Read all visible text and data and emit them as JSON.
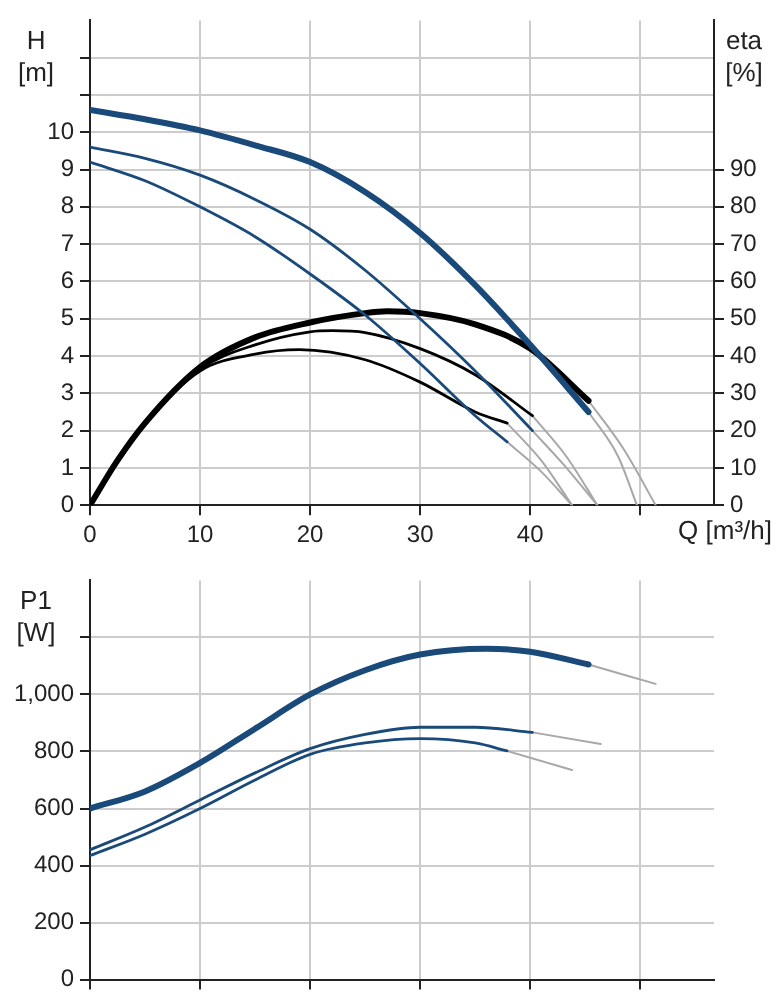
{
  "chart_data": [
    {
      "type": "line",
      "ylabel": "H [m]",
      "y2label": "eta [%]",
      "xlabel": "Q [m³/h]",
      "xlim": [
        0,
        56.7
      ],
      "xticks": [
        0,
        10,
        20,
        30,
        40,
        {
          "value": 50,
          "label": null
        }
      ],
      "ylim": [
        0,
        13
      ],
      "yticks": [
        0,
        1,
        2,
        3,
        4,
        5,
        6,
        7,
        8,
        9,
        10,
        {
          "value": 11,
          "label": null
        },
        {
          "value": 12,
          "label": null
        }
      ],
      "y2lim": [
        0,
        130
      ],
      "y2ticks": [
        0,
        10,
        20,
        30,
        40,
        50,
        60,
        70,
        80,
        90
      ],
      "grid": true,
      "legend": false,
      "marker": "none",
      "line_style": "solid",
      "series": [
        {
          "color": "#1a4a7a",
          "x": [
            0,
            5,
            10,
            15,
            20,
            25,
            30,
            35,
            40,
            45.3
          ],
          "values": [
            10.6,
            10.35,
            10.05,
            9.65,
            9.2,
            8.4,
            7.3,
            5.9,
            4.3,
            2.5
          ]
        },
        {
          "color": "#1a4a7a",
          "x": [
            0,
            5,
            10,
            15,
            20,
            25,
            30,
            35,
            40.2
          ],
          "values": [
            9.6,
            9.3,
            8.85,
            8.2,
            7.4,
            6.3,
            5.0,
            3.6,
            2.0
          ]
        },
        {
          "color": "#1a4a7a",
          "x": [
            0,
            5,
            10,
            15,
            20,
            25,
            30,
            35,
            37.9
          ],
          "values": [
            9.2,
            8.7,
            8.0,
            7.2,
            6.2,
            5.1,
            3.8,
            2.4,
            1.7
          ]
        },
        {
          "color": "#000000",
          "axis": "y2",
          "x": [
            0,
            2.5,
            5,
            10,
            15,
            20,
            25,
            27,
            30,
            35,
            40,
            45.3
          ],
          "values": [
            0,
            12,
            22,
            37,
            45,
            49,
            51.5,
            52,
            51.5,
            48.5,
            42,
            28
          ]
        },
        {
          "color": "#000000",
          "axis": "y2",
          "x": [
            0,
            2.5,
            5,
            10,
            15,
            20,
            22,
            25,
            30,
            35,
            40.2
          ],
          "values": [
            0,
            12,
            22,
            36.5,
            43,
            46.5,
            46.8,
            46.3,
            42,
            35,
            24
          ]
        },
        {
          "color": "#000000",
          "axis": "y2",
          "x": [
            0,
            2.5,
            5,
            10,
            15,
            19,
            25,
            30,
            35,
            37.9
          ],
          "values": [
            0,
            12,
            22,
            36,
            40.5,
            41.7,
            39,
            33,
            25,
            22
          ]
        },
        {
          "color": "#a8a8a8",
          "x": [
            45.3,
            48,
            49.7
          ],
          "values": [
            2.5,
            1.3,
            0
          ]
        },
        {
          "color": "#a8a8a8",
          "x": [
            40.2,
            43,
            46.1
          ],
          "values": [
            2.0,
            1.1,
            0
          ]
        },
        {
          "color": "#a8a8a8",
          "x": [
            37.9,
            41,
            43.8
          ],
          "values": [
            1.7,
            0.9,
            0
          ]
        },
        {
          "color": "#a8a8a8",
          "axis": "y2",
          "x": [
            45.3,
            48.5,
            51.4
          ],
          "values": [
            28,
            15,
            0
          ]
        },
        {
          "color": "#a8a8a8",
          "axis": "y2",
          "x": [
            40.2,
            43.3,
            46.1
          ],
          "values": [
            24,
            13,
            0
          ]
        },
        {
          "color": "#a8a8a8",
          "axis": "y2",
          "x": [
            37.9,
            41,
            43.8
          ],
          "values": [
            22,
            12,
            0
          ]
        }
      ]
    },
    {
      "type": "line",
      "ylabel": "P1 [W]",
      "xlim": [
        0,
        56.7
      ],
      "xticks": [
        0,
        10,
        20,
        30,
        40,
        50
      ],
      "ylim": [
        0,
        1400
      ],
      "yticks": [
        0,
        200,
        400,
        600,
        800,
        {
          "value": 1000,
          "label": "1,000"
        },
        {
          "value": 1200,
          "label": null
        }
      ],
      "tick_labels": "y",
      "grid": true,
      "legend": false,
      "marker": "none",
      "line_style": "solid",
      "series": [
        {
          "color": "#1a4a7a",
          "x": [
            0,
            5,
            10,
            15,
            20,
            25,
            30,
            36,
            40,
            45.3
          ],
          "values": [
            600,
            660,
            760,
            880,
            1000,
            1085,
            1140,
            1160,
            1150,
            1105
          ]
        },
        {
          "color": "#1a4a7a",
          "x": [
            0,
            5,
            10,
            15,
            20,
            25,
            30,
            35,
            40.2
          ],
          "values": [
            455,
            535,
            630,
            725,
            810,
            860,
            885,
            885,
            867
          ]
        },
        {
          "color": "#1a4a7a",
          "x": [
            0,
            5,
            10,
            15,
            20,
            25,
            30,
            35,
            37.9
          ],
          "values": [
            435,
            510,
            600,
            700,
            790,
            830,
            845,
            830,
            802
          ]
        },
        {
          "color": "#a8a8a8",
          "x": [
            45.3,
            51.4
          ],
          "values": [
            1105,
            1037
          ]
        },
        {
          "color": "#a8a8a8",
          "x": [
            40.2,
            46.4
          ],
          "values": [
            867,
            826
          ]
        },
        {
          "color": "#a8a8a8",
          "x": [
            37.9,
            43.8
          ],
          "values": [
            802,
            735
          ]
        }
      ]
    }
  ]
}
